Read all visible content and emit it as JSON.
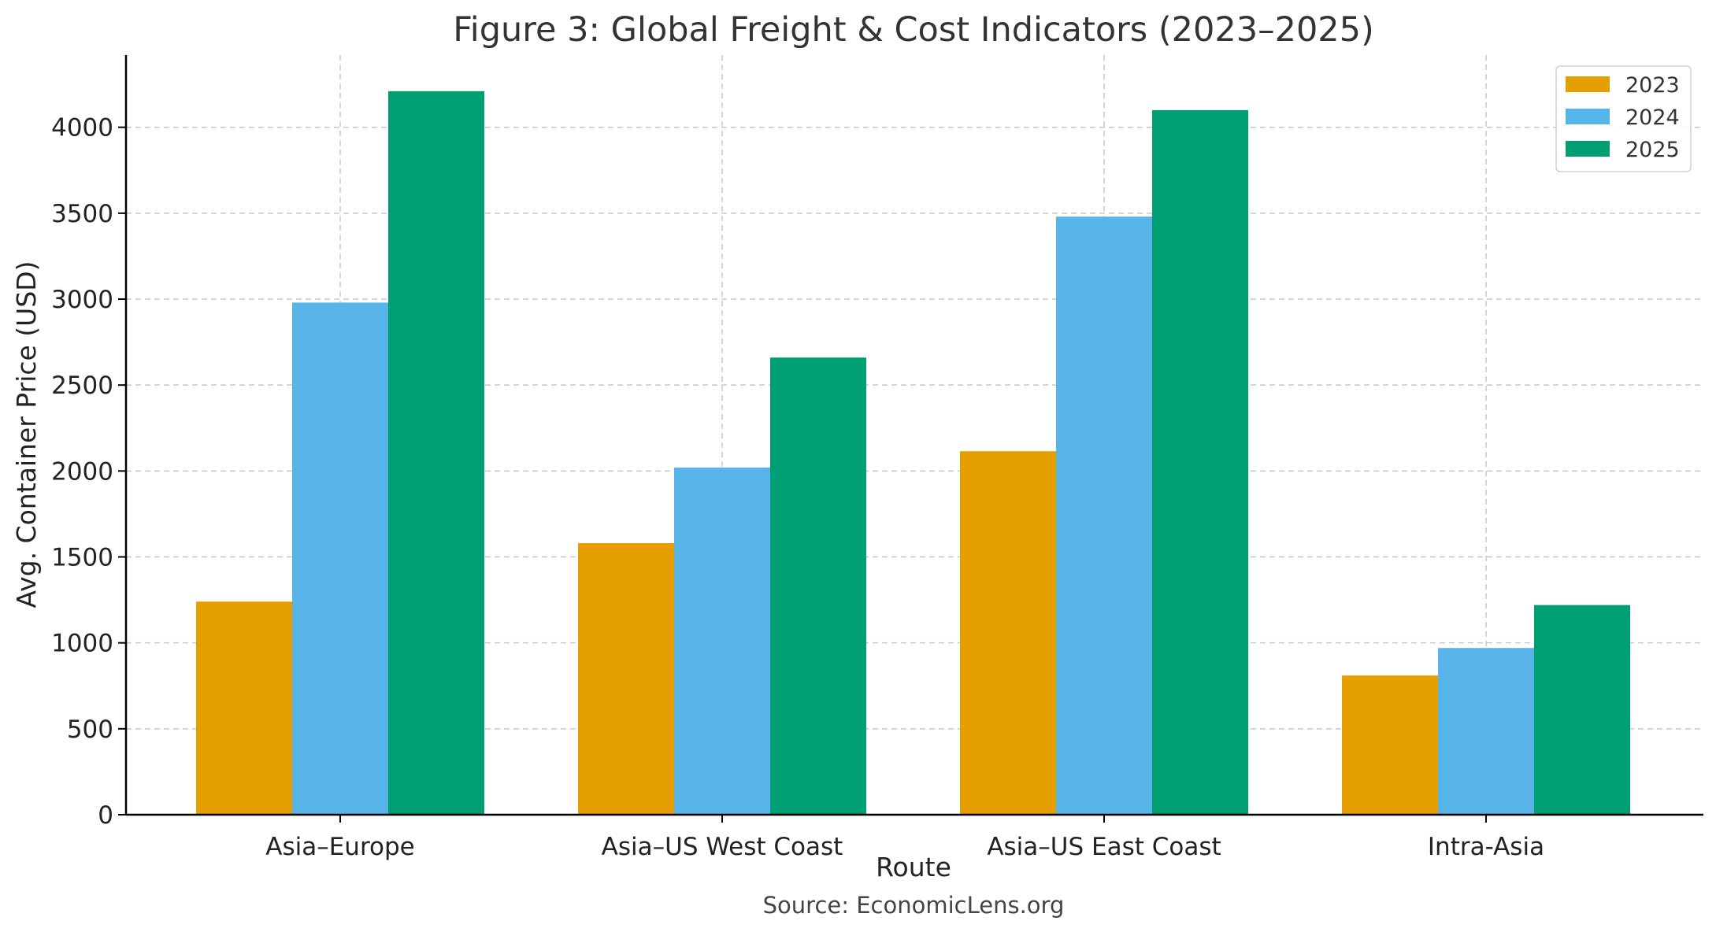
{
  "chart_data": {
    "type": "bar",
    "title": "Figure 3: Global Freight & Cost Indicators (2023–2025)",
    "xlabel": "Route",
    "ylabel": "Avg. Container Price (USD)",
    "source": "Source: EconomicLens.org",
    "categories": [
      "Asia–Europe",
      "Asia–US West Coast",
      "Asia–US East Coast",
      "Intra-Asia"
    ],
    "series": [
      {
        "name": "2023",
        "color": "#E69F00",
        "values": [
          1240,
          1580,
          2115,
          810
        ]
      },
      {
        "name": "2024",
        "color": "#56B4E9",
        "values": [
          2980,
          2020,
          3480,
          970
        ]
      },
      {
        "name": "2025",
        "color": "#009E73",
        "values": [
          4210,
          2660,
          4100,
          1220
        ]
      }
    ],
    "yticks": [
      0,
      500,
      1000,
      1500,
      2000,
      2500,
      3000,
      3500,
      4000
    ],
    "ylim": [
      0,
      4420
    ],
    "grid": true,
    "legend_position": "top-right"
  }
}
